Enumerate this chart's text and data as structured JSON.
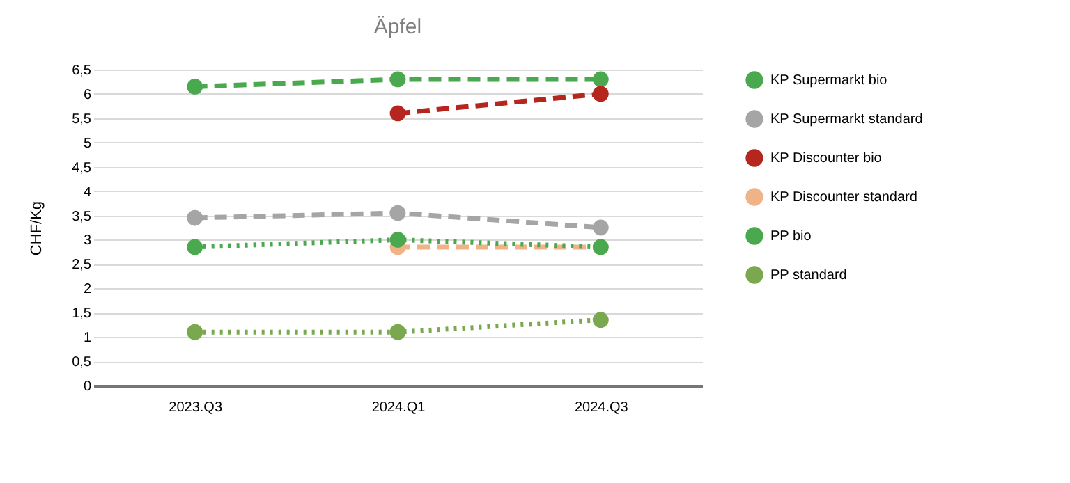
{
  "chart_data": {
    "type": "line",
    "title": "Äpfel",
    "ylabel": "CHF/Kg",
    "categories": [
      "2023.Q3",
      "2024.Q1",
      "2024.Q3"
    ],
    "series": [
      {
        "name": "KP Supermarkt bio",
        "color": "#4aa94f",
        "line_style": "dashed",
        "values": [
          6.15,
          6.3,
          6.3
        ]
      },
      {
        "name": "KP Supermarkt standard",
        "color": "#a5a5a5",
        "line_style": "dashed",
        "values": [
          3.45,
          3.55,
          3.25
        ]
      },
      {
        "name": "KP Discounter bio",
        "color": "#b5261e",
        "line_style": "dashed",
        "values": [
          null,
          5.6,
          6.0
        ]
      },
      {
        "name": "KP Discounter standard",
        "color": "#f0b287",
        "line_style": "dashed",
        "values": [
          null,
          2.85,
          2.85
        ]
      },
      {
        "name": "PP bio",
        "color": "#4aa94f",
        "line_style": "dotted",
        "values": [
          2.85,
          3.0,
          2.85
        ]
      },
      {
        "name": "PP standard",
        "color": "#7aa84f",
        "line_style": "dotted",
        "values": [
          1.1,
          1.1,
          1.35
        ]
      }
    ],
    "ylim": [
      0,
      6.5
    ],
    "yticks": [
      0,
      {
        "value": 0.5,
        "label": "0,5"
      },
      1,
      {
        "value": 1.5,
        "label": "1,5"
      },
      2,
      {
        "value": 2.5,
        "label": "2,5"
      },
      3,
      {
        "value": 3.5,
        "label": "3,5"
      },
      4,
      {
        "value": 4.5,
        "label": "4,5"
      },
      5,
      {
        "value": 5.5,
        "label": "5,5"
      },
      6,
      {
        "value": 6.5,
        "label": "6,5"
      }
    ],
    "grid": "y",
    "legend": "top right",
    "marker": "circle"
  }
}
